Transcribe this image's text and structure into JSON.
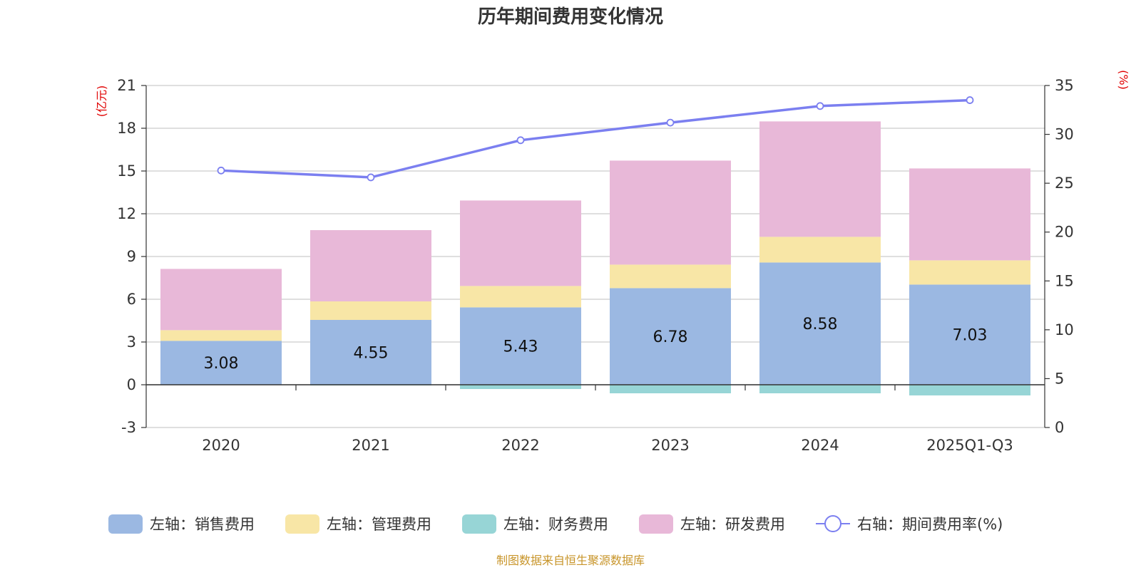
{
  "chart_data": {
    "type": "bar",
    "title": "历年期间费用变化情况",
    "categories": [
      "2020",
      "2021",
      "2022",
      "2023",
      "2024",
      "2025Q1-Q3"
    ],
    "left_axis": {
      "unit": "(亿元)",
      "ylim": [
        -3,
        21
      ],
      "ticks": [
        -3,
        0,
        3,
        6,
        9,
        12,
        15,
        18,
        21
      ],
      "tick_labels": [
        "-3",
        "0",
        "3",
        "6",
        "9",
        "12",
        "15",
        "18",
        "21"
      ]
    },
    "right_axis": {
      "unit": "(%)",
      "ylim": [
        0,
        35
      ],
      "ticks": [
        0,
        5,
        10,
        15,
        20,
        25,
        30,
        35
      ],
      "tick_labels": [
        "0",
        "5",
        "10",
        "15",
        "20",
        "25",
        "30",
        "35"
      ]
    },
    "series": [
      {
        "name": "左轴：销售费用",
        "axis": "left",
        "kind": "bar",
        "color": "#9bb8e2",
        "values": [
          3.08,
          4.55,
          5.43,
          6.78,
          8.58,
          7.03
        ],
        "labels": [
          "3.08",
          "4.55",
          "5.43",
          "6.78",
          "8.58",
          "7.03"
        ]
      },
      {
        "name": "左轴：管理费用",
        "axis": "left",
        "kind": "bar",
        "color": "#f8e6a6",
        "values": [
          0.75,
          1.3,
          1.5,
          1.65,
          1.8,
          1.7
        ]
      },
      {
        "name": "左轴：财务费用",
        "axis": "left",
        "kind": "bar",
        "color": "#97d5d6",
        "values": [
          0.0,
          -0.05,
          -0.3,
          -0.6,
          -0.6,
          -0.75
        ]
      },
      {
        "name": "左轴：研发费用",
        "axis": "left",
        "kind": "bar",
        "color": "#e8b8d8",
        "values": [
          4.3,
          5.0,
          6.0,
          7.3,
          8.1,
          6.45
        ]
      },
      {
        "name": "右轴：期间费用率(%)",
        "axis": "right",
        "kind": "line",
        "color": "#7b7ff0",
        "values": [
          26.3,
          25.6,
          29.4,
          31.2,
          32.9,
          33.5
        ]
      }
    ],
    "legend_position": "bottom",
    "grid": true
  },
  "source_note": "制图数据来自恒生聚源数据库"
}
